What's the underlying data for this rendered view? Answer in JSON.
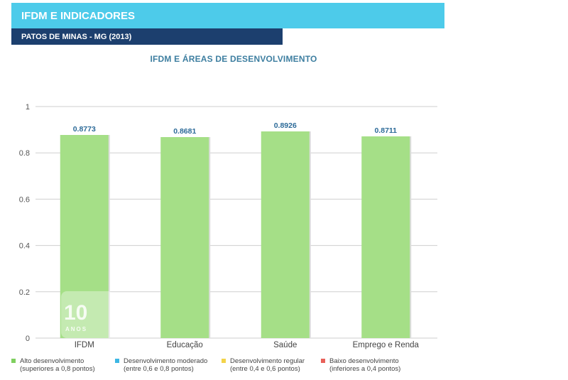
{
  "header": {
    "title": "IFDM E INDICADORES",
    "subtitle": "PATOS DE MINAS - MG (2013)"
  },
  "chart_data": {
    "type": "bar",
    "title": "IFDM E ÁREAS DE DESENVOLVIMENTO",
    "categories": [
      "IFDM",
      "Educação",
      "Saúde",
      "Emprego e Renda"
    ],
    "values": [
      0.8773,
      0.8681,
      0.8926,
      0.8711
    ],
    "data_labels": [
      "0.8773",
      "0.8681",
      "0.8926",
      "0.8711"
    ],
    "ylim": [
      0,
      1
    ],
    "yticks": [
      0,
      0.2,
      0.4,
      0.6,
      0.8,
      1
    ],
    "ytick_labels": [
      "0",
      "0.2",
      "0.4",
      "0.6",
      "0.8",
      "1"
    ],
    "grid": true,
    "bar_color": "#a5df87",
    "legend_position": "bottom",
    "legend": [
      {
        "label": "Alto desenvolvimento",
        "detail": "(superiores a 0,8 pontos)",
        "color": "#7fcf5f"
      },
      {
        "label": "Desenvolvimento moderado",
        "detail": "(entre 0,6 e 0,8 pontos)",
        "color": "#3db7e4"
      },
      {
        "label": "Desenvolvimento regular",
        "detail": "(entre 0,4 e 0,6 pontos)",
        "color": "#f3d34a"
      },
      {
        "label": "Baixo desenvolvimento",
        "detail": "(inferiores a 0,4 pontos)",
        "color": "#e8615a"
      }
    ]
  },
  "watermark": {
    "number": "10",
    "text": "ANOS"
  }
}
